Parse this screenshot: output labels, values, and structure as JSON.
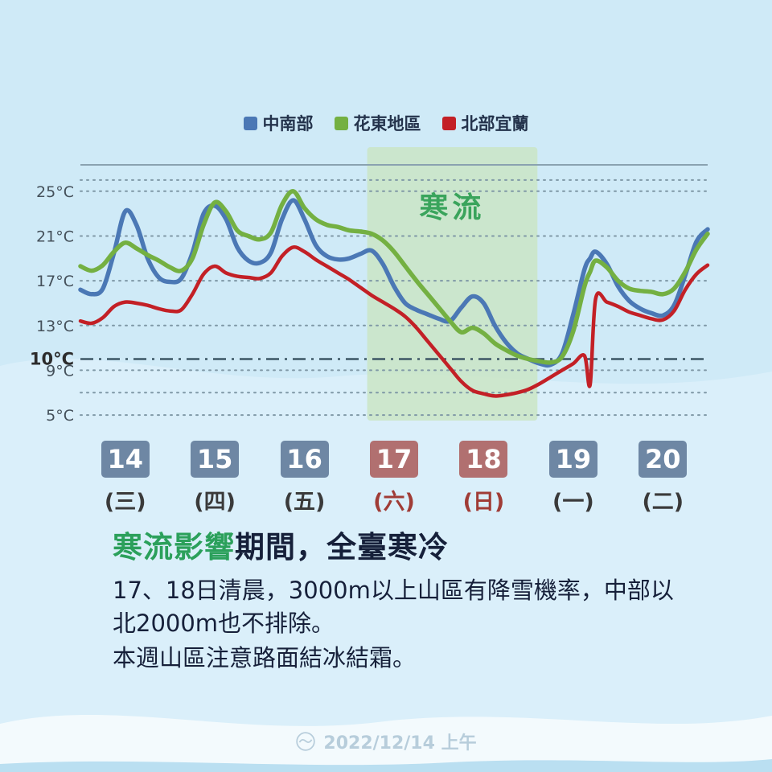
{
  "legend": {
    "items": [
      {
        "label": "中南部",
        "color": "#4b78b5"
      },
      {
        "label": "花東地區",
        "color": "#74b042"
      },
      {
        "label": "北部宜蘭",
        "color": "#c32026"
      }
    ]
  },
  "chart_data": {
    "type": "line",
    "title": "",
    "xlabel": "",
    "ylabel": "°C",
    "legend_position": "top",
    "ylim": [
      4,
      27
    ],
    "x_unit": "day (Dec 14 = 0 … Dec 20 = 6)",
    "y_ticks": [
      {
        "value": 25,
        "label": "25°C",
        "bold": false
      },
      {
        "value": 21,
        "label": "21°C",
        "bold": false
      },
      {
        "value": 17,
        "label": "17°C",
        "bold": false
      },
      {
        "value": 13,
        "label": "13°C",
        "bold": false
      },
      {
        "value": 10,
        "label": "10°C",
        "bold": true
      },
      {
        "value": 9,
        "label": "9°C",
        "bold": false
      },
      {
        "value": 5,
        "label": "5°C",
        "bold": false
      }
    ],
    "gridline_temps": [
      26,
      25,
      21,
      17,
      13,
      9,
      7,
      5
    ],
    "reference_line": 10,
    "highlight_band": {
      "label": "寒流",
      "x_start": 3.2,
      "x_end": 5.1,
      "color": "#c9e5c2",
      "opacity": 0.8,
      "label_color": "#3aa45c"
    },
    "x": [
      0,
      0.125,
      0.25,
      0.375,
      0.5,
      0.625,
      0.75,
      0.875,
      1,
      1.125,
      1.25,
      1.375,
      1.5,
      1.625,
      1.75,
      1.875,
      2,
      2.125,
      2.25,
      2.375,
      2.5,
      2.625,
      2.75,
      2.875,
      3,
      3.125,
      3.25,
      3.375,
      3.5,
      3.625,
      3.75,
      3.875,
      4,
      4.125,
      4.25,
      4.375,
      4.5,
      4.625,
      4.75,
      4.875,
      5,
      5.125,
      5.25,
      5.375,
      5.5,
      5.625,
      5.6875,
      5.75,
      5.875,
      6,
      6.125,
      6.25,
      6.375,
      6.5,
      6.625,
      6.75,
      6.875,
      7
    ],
    "series": [
      {
        "name": "中南部",
        "color": "#4b78b5",
        "width": 5.5,
        "values": [
          16.2,
          15.8,
          16.3,
          19.5,
          23.2,
          22.0,
          19.0,
          17.3,
          16.9,
          17.2,
          19.5,
          23.0,
          23.7,
          22.5,
          20.0,
          18.8,
          18.6,
          19.5,
          22.5,
          24.2,
          22.5,
          20.2,
          19.2,
          18.9,
          19.0,
          19.4,
          19.7,
          18.5,
          16.5,
          15.0,
          14.4,
          14.0,
          13.6,
          13.4,
          14.6,
          15.6,
          15.0,
          13.0,
          11.5,
          10.5,
          10.0,
          9.6,
          9.5,
          10.5,
          14.0,
          18.0,
          19.0,
          19.6,
          18.5,
          16.5,
          15.2,
          14.5,
          14.1,
          13.9,
          14.8,
          17.5,
          20.5,
          21.6
        ]
      },
      {
        "name": "花東地區",
        "color": "#74b042",
        "width": 5.5,
        "values": [
          18.3,
          17.9,
          18.4,
          19.6,
          20.4,
          19.9,
          19.3,
          18.8,
          18.2,
          17.9,
          19.0,
          22.0,
          24.0,
          23.2,
          21.5,
          21.0,
          20.7,
          21.3,
          23.8,
          25.0,
          23.5,
          22.5,
          22.0,
          21.8,
          21.5,
          21.4,
          21.2,
          20.6,
          19.6,
          18.3,
          17.0,
          15.8,
          14.6,
          13.4,
          12.4,
          12.8,
          12.3,
          11.4,
          10.8,
          10.3,
          10.0,
          9.8,
          9.7,
          10.2,
          12.5,
          16.5,
          17.8,
          18.8,
          18.2,
          17.0,
          16.3,
          16.1,
          16.0,
          15.8,
          16.3,
          17.8,
          19.8,
          21.2
        ]
      },
      {
        "name": "北部宜蘭",
        "color": "#c32026",
        "width": 4.5,
        "values": [
          13.4,
          13.2,
          13.7,
          14.7,
          15.1,
          15.0,
          14.8,
          14.5,
          14.3,
          14.4,
          15.8,
          17.6,
          18.3,
          17.7,
          17.4,
          17.3,
          17.2,
          17.7,
          19.2,
          20.0,
          19.6,
          18.9,
          18.3,
          17.7,
          17.1,
          16.4,
          15.7,
          15.1,
          14.5,
          13.8,
          12.8,
          11.6,
          10.4,
          9.2,
          8.0,
          7.2,
          6.9,
          6.7,
          6.8,
          7.0,
          7.3,
          7.8,
          8.4,
          9.0,
          9.6,
          10.3,
          7.7,
          15.4,
          15.1,
          14.7,
          14.2,
          13.9,
          13.6,
          13.5,
          14.3,
          16.2,
          17.6,
          18.4
        ]
      }
    ]
  },
  "x_axis": {
    "days": [
      {
        "num": "14",
        "weekday": "(三)",
        "kind": "weekday"
      },
      {
        "num": "15",
        "weekday": "(四)",
        "kind": "weekday"
      },
      {
        "num": "16",
        "weekday": "(五)",
        "kind": "weekday"
      },
      {
        "num": "17",
        "weekday": "(六)",
        "kind": "weekend"
      },
      {
        "num": "18",
        "weekday": "(日)",
        "kind": "weekend"
      },
      {
        "num": "19",
        "weekday": "(一)",
        "kind": "weekday"
      },
      {
        "num": "20",
        "weekday": "(二)",
        "kind": "weekday"
      }
    ],
    "weekday_box_color": "#6e87a4",
    "weekend_box_color": "#b17070",
    "weekday_text_color": "#3a3a3a",
    "weekend_text_color": "#a03c36"
  },
  "caption": {
    "title_highlight": "寒流影響",
    "title_rest": "期間，全臺寒冷",
    "highlight_color": "#2ba05b",
    "body_lines": [
      "17、18日清晨，3000m以上山區有降雪機率，中部以北2000m也不排除。",
      "本週山區注意路面結冰結霜。"
    ]
  },
  "footer": {
    "timestamp": "2022/12/14 上午"
  }
}
